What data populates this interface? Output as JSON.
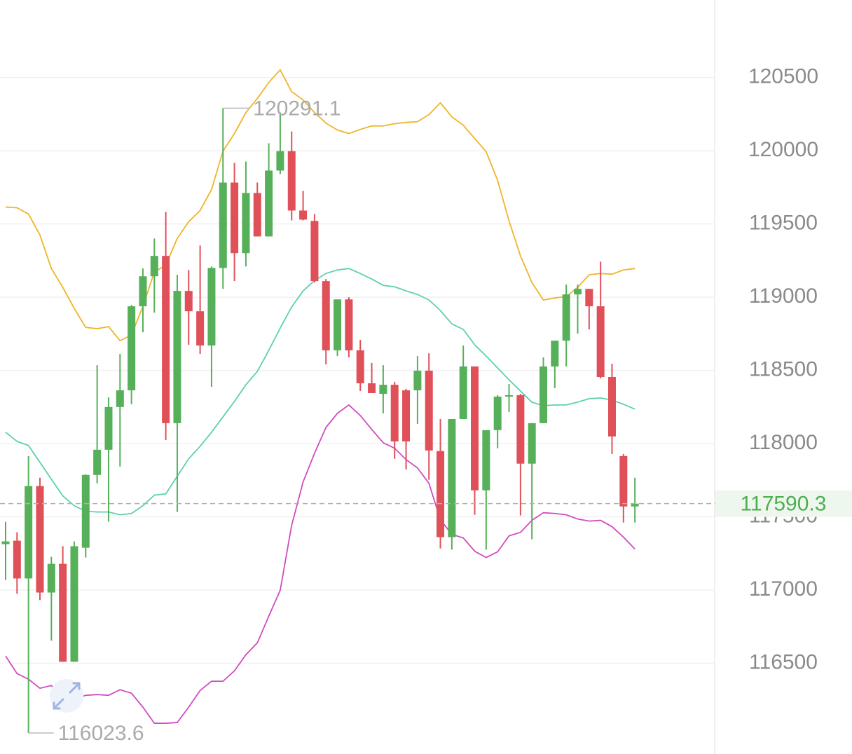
{
  "chart_data": {
    "type": "candlestick",
    "up_color": "#56b05a",
    "down_color": "#e05058",
    "ylim": [
      115880,
      121030
    ],
    "yticks": [
      116500,
      117000,
      117500,
      118000,
      118500,
      119000,
      119500,
      120000,
      120500
    ],
    "grid": true,
    "open": [
      117313,
      117337,
      117079,
      117710,
      116983,
      117179,
      116510,
      117289,
      117786,
      117958,
      118250,
      118364,
      118938,
      119143,
      119282,
      118140,
      119043,
      118904,
      118670,
      119200,
      119783,
      119301,
      119712,
      119415,
      119865,
      119998,
      119592,
      119521,
      119110,
      118637,
      118985,
      118637,
      118412,
      118340,
      118402,
      118364,
      118364,
      118498,
      117949,
      117361,
      118168,
      118527,
      117681,
      118092,
      118321,
      118331,
      117863,
      118140,
      118527,
      118703,
      119019,
      119057,
      118938,
      118455,
      117915,
      117571
    ],
    "high": [
      117466,
      117394,
      117915,
      117767,
      117227,
      117299,
      117332,
      117791,
      118536,
      118316,
      118613,
      118947,
      119196,
      119401,
      119583,
      119153,
      119186,
      119353,
      119210,
      120291.1,
      119917,
      119927,
      119783,
      120051,
      120261,
      120132,
      119726,
      119568,
      119124,
      118985,
      119000,
      118708,
      118551,
      118536,
      118422,
      118374,
      118598,
      118617,
      118168,
      118168,
      118670,
      118527,
      118092,
      118331,
      118407,
      118340,
      118140,
      118589,
      118703,
      119086,
      119086,
      119057,
      119243,
      118546,
      117929,
      117767
    ],
    "low": [
      117069,
      116974,
      116023.6,
      116931,
      116654,
      116510,
      116510,
      117222,
      117729,
      117466,
      117843,
      118269,
      118761,
      118895,
      118025,
      117533,
      118675,
      118613,
      118388,
      119057,
      119110,
      119210,
      119415,
      119415,
      119841,
      119525,
      119525,
      119100,
      118541,
      118598,
      118589,
      118359,
      118345,
      118207,
      117896,
      117824,
      118135,
      117753,
      117284,
      117275,
      118168,
      117514,
      117275,
      117968,
      118216,
      117509,
      117347,
      118140,
      118379,
      118527,
      118751,
      118780,
      118445,
      117929,
      117461,
      117461
    ],
    "close": [
      117332,
      117079,
      117710,
      116983,
      117179,
      116510,
      117299,
      117786,
      117958,
      118250,
      118364,
      118938,
      119143,
      119282,
      118140,
      119043,
      118904,
      118670,
      119200,
      119783,
      119301,
      119712,
      119415,
      119865,
      119998,
      119592,
      119530,
      119110,
      118637,
      118985,
      118637,
      118412,
      118345,
      118402,
      118015,
      118015,
      118498,
      117953,
      117361,
      118168,
      118527,
      117681,
      118092,
      118321,
      118331,
      117863,
      118140,
      118527,
      118703,
      119019,
      119057,
      118938,
      118455,
      118049,
      117571,
      117590.3
    ],
    "bands": [
      {
        "color": "#f0b429",
        "values": [
          119616,
          119611,
          119568,
          119425,
          119196,
          119067,
          118923,
          118794,
          118785,
          118799,
          118703,
          118742,
          118938,
          119172,
          119219,
          119401,
          119516,
          119592,
          119736,
          119998,
          120118,
          120261,
          120357,
          120467,
          120553,
          120404,
          120347,
          120261,
          120189,
          120142,
          120118,
          120146,
          120170,
          120170,
          120185,
          120194,
          120199,
          120247,
          120328,
          120232,
          120175,
          120084,
          119994,
          119798,
          119521,
          119282,
          119100,
          118981,
          118995,
          119004,
          119067,
          119153,
          119162,
          119157,
          119186,
          119196
        ]
      },
      {
        "color": "#5fcfb0",
        "values": [
          118078,
          118015,
          117987,
          117872,
          117757,
          117643,
          117576,
          117538,
          117533,
          117533,
          117514,
          117523,
          117576,
          117648,
          117657,
          117777,
          117896,
          117982,
          118078,
          118183,
          118288,
          118402,
          118493,
          118637,
          118789,
          118933,
          119043,
          119114,
          119162,
          119186,
          119196,
          119162,
          119124,
          119081,
          119071,
          119043,
          119019,
          118981,
          118909,
          118818,
          118780,
          118675,
          118598,
          118517,
          118436,
          118359,
          118283,
          118259,
          118264,
          118264,
          118283,
          118307,
          118312,
          118297,
          118269,
          118235
        ]
      },
      {
        "color": "#d04cc0",
        "values": [
          116549,
          116429,
          116391,
          116329,
          116348,
          116243,
          116252,
          116281,
          116286,
          116281,
          116319,
          116295,
          116200,
          116090,
          116090,
          116095,
          116200,
          116314,
          116377,
          116377,
          116448,
          116558,
          116639,
          116821,
          116998,
          117442,
          117738,
          117934,
          118111,
          118207,
          118264,
          118192,
          118097,
          118006,
          117968,
          117891,
          117834,
          117729,
          117480,
          117380,
          117356,
          117265,
          117222,
          117261,
          117370,
          117394,
          117476,
          117528,
          117523,
          117514,
          117485,
          117471,
          117476,
          117433,
          117361,
          117280
        ]
      }
    ]
  }
}
